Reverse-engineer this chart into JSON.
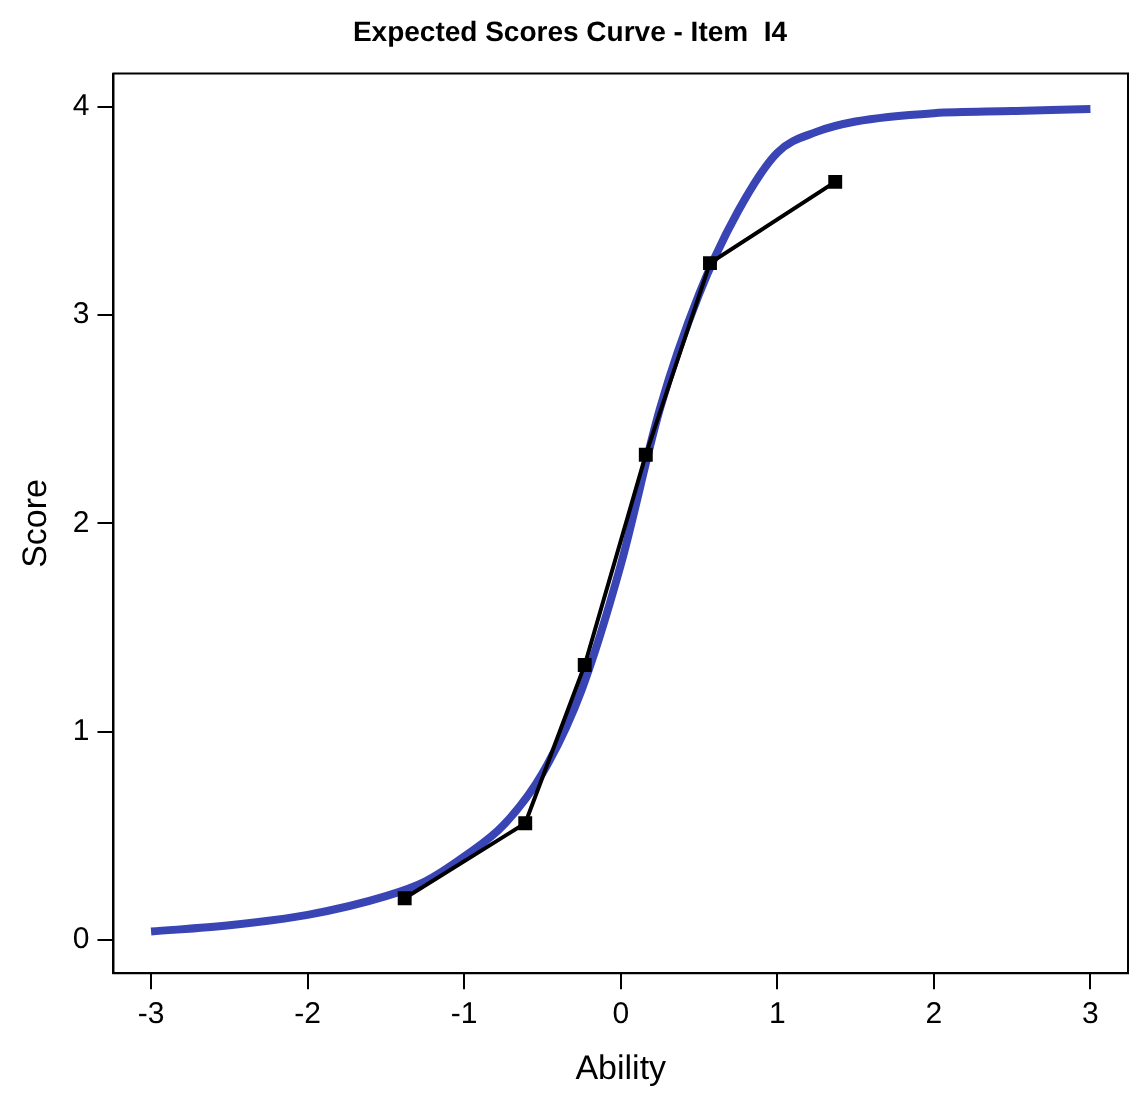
{
  "chart_data": {
    "type": "line",
    "title": "Expected Scores Curve - Item  I4",
    "xlabel": "Ability",
    "ylabel": "Score",
    "xlim": [
      -3.24,
      3.24
    ],
    "ylim": [
      -0.16,
      4.16
    ],
    "xticks": [
      -3,
      -2,
      -1,
      0,
      1,
      2,
      3
    ],
    "yticks": [
      0,
      1,
      2,
      3,
      4
    ],
    "grid": false,
    "legend": false,
    "series": [
      {
        "color": "#3a45b5",
        "marker": "none",
        "x": [
          -3,
          -2.5,
          -2,
          -1.5,
          -1.25,
          -1,
          -0.75,
          -0.5,
          -0.25,
          0,
          0.25,
          0.5,
          0.75,
          1,
          1.25,
          1.5,
          2,
          2.5,
          3
        ],
        "values": [
          0.04,
          0.07,
          0.12,
          0.21,
          0.28,
          0.4,
          0.55,
          0.8,
          1.2,
          1.8,
          2.55,
          3.1,
          3.5,
          3.78,
          3.88,
          3.93,
          3.97,
          3.98,
          3.99
        ]
      },
      {
        "color": "#000000",
        "marker": "square",
        "x": [
          -1.38,
          -0.61,
          -0.23,
          0.16,
          0.57,
          1.37
        ],
        "values": [
          0.2,
          0.56,
          1.32,
          2.33,
          3.25,
          3.64
        ]
      }
    ]
  }
}
